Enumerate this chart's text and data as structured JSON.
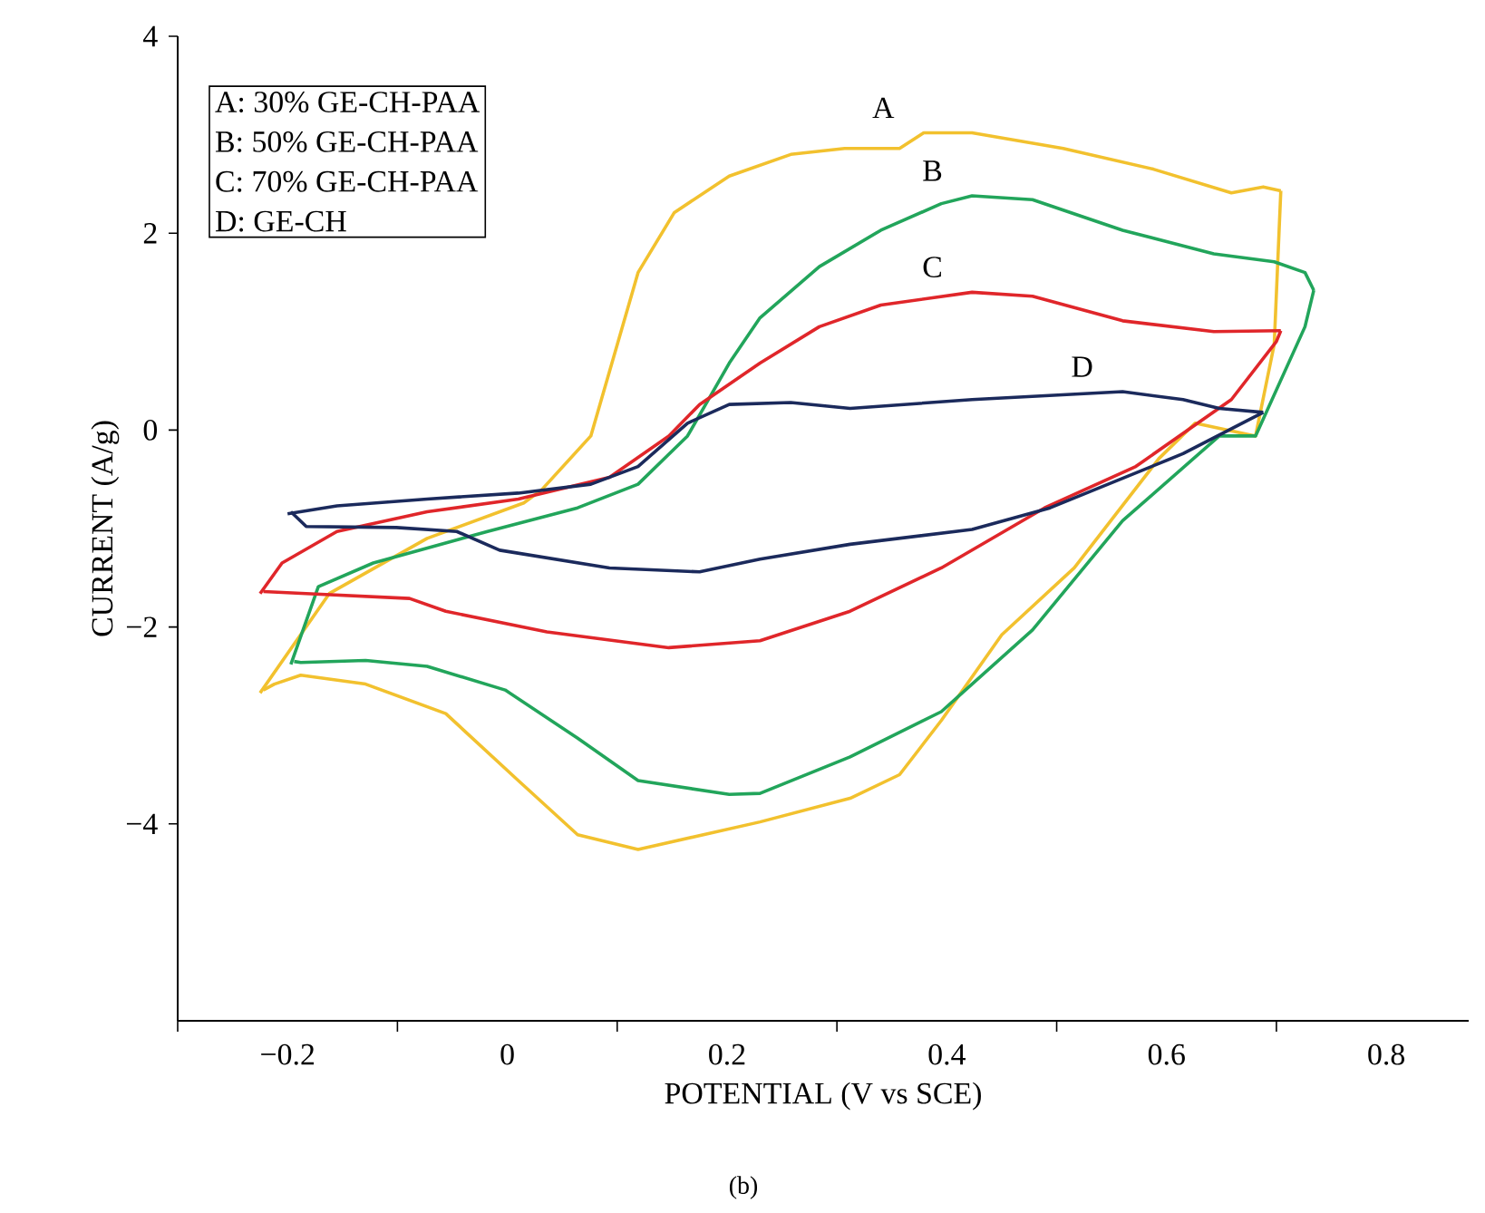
{
  "chart_data": {
    "type": "line",
    "xlabel": "POTENTIAL (V vs SCE)",
    "ylabel": "CURRENT (A/g)",
    "xlim": [
      -0.3,
      0.875
    ],
    "ylim": [
      -6,
      4
    ],
    "xticks": [
      {
        "value": -0.3,
        "label": null
      },
      {
        "value": -0.2,
        "label": "−0.2"
      },
      {
        "value": -0.1,
        "label": null
      },
      0,
      {
        "value": 0.1,
        "label": null
      },
      0.2,
      {
        "value": 0.3,
        "label": null
      },
      0.4,
      {
        "value": 0.5,
        "label": null
      },
      0.6,
      {
        "value": 0.7,
        "label": null
      },
      0.8
    ],
    "yticks": [
      {
        "value": -4,
        "label": "−4"
      },
      {
        "value": -2,
        "label": "−2"
      },
      0,
      2,
      4
    ],
    "grid": false,
    "marker": "none",
    "line_style": "solid",
    "series": [
      {
        "name": "A",
        "color": "#f2c12e",
        "x": [
          -0.225,
          -0.162,
          -0.073,
          0.015,
          0.031,
          0.076,
          0.119,
          0.152,
          0.202,
          0.258,
          0.307,
          0.357,
          0.379,
          0.423,
          0.506,
          0.588,
          0.659,
          0.688,
          0.704
        ],
        "values": [
          -2.67,
          -1.66,
          -1.1,
          -0.74,
          -0.61,
          -0.06,
          1.6,
          2.21,
          2.58,
          2.8,
          2.86,
          2.86,
          3.02,
          3.02,
          2.86,
          2.65,
          2.41,
          2.47,
          2.43
        ]
      },
      {
        "color": "#f2c12e",
        "x": [
          0.704,
          0.698,
          0.681,
          0.626,
          0.593,
          0.516,
          0.45,
          0.395,
          0.357,
          0.312,
          0.23,
          0.119,
          0.064,
          0.01,
          -0.056,
          -0.129,
          -0.188,
          -0.212,
          -0.222
        ],
        "values": [
          2.43,
          0.87,
          -0.06,
          0.07,
          -0.29,
          -1.4,
          -2.08,
          -2.95,
          -3.5,
          -3.74,
          -3.98,
          -4.26,
          -4.11,
          -3.56,
          -2.88,
          -2.58,
          -2.49,
          -2.58,
          -2.64
        ]
      },
      {
        "name": "B",
        "color": "#22a55b",
        "x": [
          -0.197,
          -0.172,
          -0.122,
          -0.018,
          0.064,
          0.119,
          0.164,
          0.202,
          0.23,
          0.284,
          0.34,
          0.395,
          0.423,
          0.478,
          0.56,
          0.643,
          0.698,
          0.726,
          0.734
        ],
        "values": [
          -2.38,
          -1.59,
          -1.35,
          -1.03,
          -0.79,
          -0.55,
          -0.06,
          0.68,
          1.14,
          1.66,
          2.03,
          2.3,
          2.38,
          2.34,
          2.03,
          1.79,
          1.71,
          1.6,
          1.42
        ]
      },
      {
        "color": "#22a55b",
        "x": [
          0.734,
          0.726,
          0.681,
          0.648,
          0.56,
          0.478,
          0.395,
          0.312,
          0.23,
          0.202,
          0.119,
          0.064,
          -0.002,
          -0.073,
          -0.129,
          -0.188,
          -0.194
        ],
        "values": [
          1.42,
          1.05,
          -0.06,
          -0.06,
          -0.92,
          -2.03,
          -2.86,
          -3.32,
          -3.69,
          -3.7,
          -3.56,
          -3.13,
          -2.64,
          -2.4,
          -2.34,
          -2.36,
          -2.35
        ]
      },
      {
        "name": "C",
        "color": "#e0262a",
        "x": [
          -0.225,
          -0.205,
          -0.155,
          -0.073,
          0.01,
          0.093,
          0.147,
          0.175,
          0.23,
          0.284,
          0.34,
          0.423,
          0.478,
          0.56,
          0.643,
          0.704
        ],
        "values": [
          -1.66,
          -1.35,
          -1.03,
          -0.83,
          -0.7,
          -0.48,
          -0.06,
          0.26,
          0.68,
          1.05,
          1.27,
          1.4,
          1.36,
          1.11,
          1.0,
          1.01
        ]
      },
      {
        "color": "#e0262a",
        "x": [
          0.704,
          0.7,
          0.659,
          0.572,
          0.489,
          0.395,
          0.312,
          0.23,
          0.147,
          0.036,
          -0.056,
          -0.089,
          -0.183,
          -0.222
        ],
        "values": [
          1.01,
          0.9,
          0.31,
          -0.37,
          -0.79,
          -1.4,
          -1.84,
          -2.14,
          -2.21,
          -2.05,
          -1.84,
          -1.71,
          -1.66,
          -1.64
        ]
      },
      {
        "name": "D",
        "color": "#1b2a5c",
        "x": [
          -0.2,
          -0.155,
          -0.073,
          0.01,
          0.076,
          0.119,
          0.164,
          0.202,
          0.258,
          0.312,
          0.423,
          0.56,
          0.615,
          0.648,
          0.688
        ],
        "values": [
          -0.85,
          -0.77,
          -0.7,
          -0.64,
          -0.55,
          -0.37,
          0.07,
          0.26,
          0.28,
          0.22,
          0.31,
          0.39,
          0.31,
          0.22,
          0.18
        ]
      },
      {
        "color": "#1b2a5c",
        "x": [
          0.688,
          0.615,
          0.494,
          0.423,
          0.312,
          0.23,
          0.175,
          0.093,
          -0.007,
          -0.046,
          -0.101,
          -0.183,
          -0.197
        ],
        "values": [
          0.18,
          -0.24,
          -0.79,
          -1.01,
          -1.16,
          -1.31,
          -1.44,
          -1.4,
          -1.22,
          -1.03,
          -0.99,
          -0.98,
          -0.83
        ]
      }
    ],
    "annotations": [
      "A: 30% GE-CH-PAA",
      "B: 50% GE-CH-PAA",
      "C: 70% GE-CH-PAA",
      "D: GE-CH",
      "(b)"
    ]
  }
}
